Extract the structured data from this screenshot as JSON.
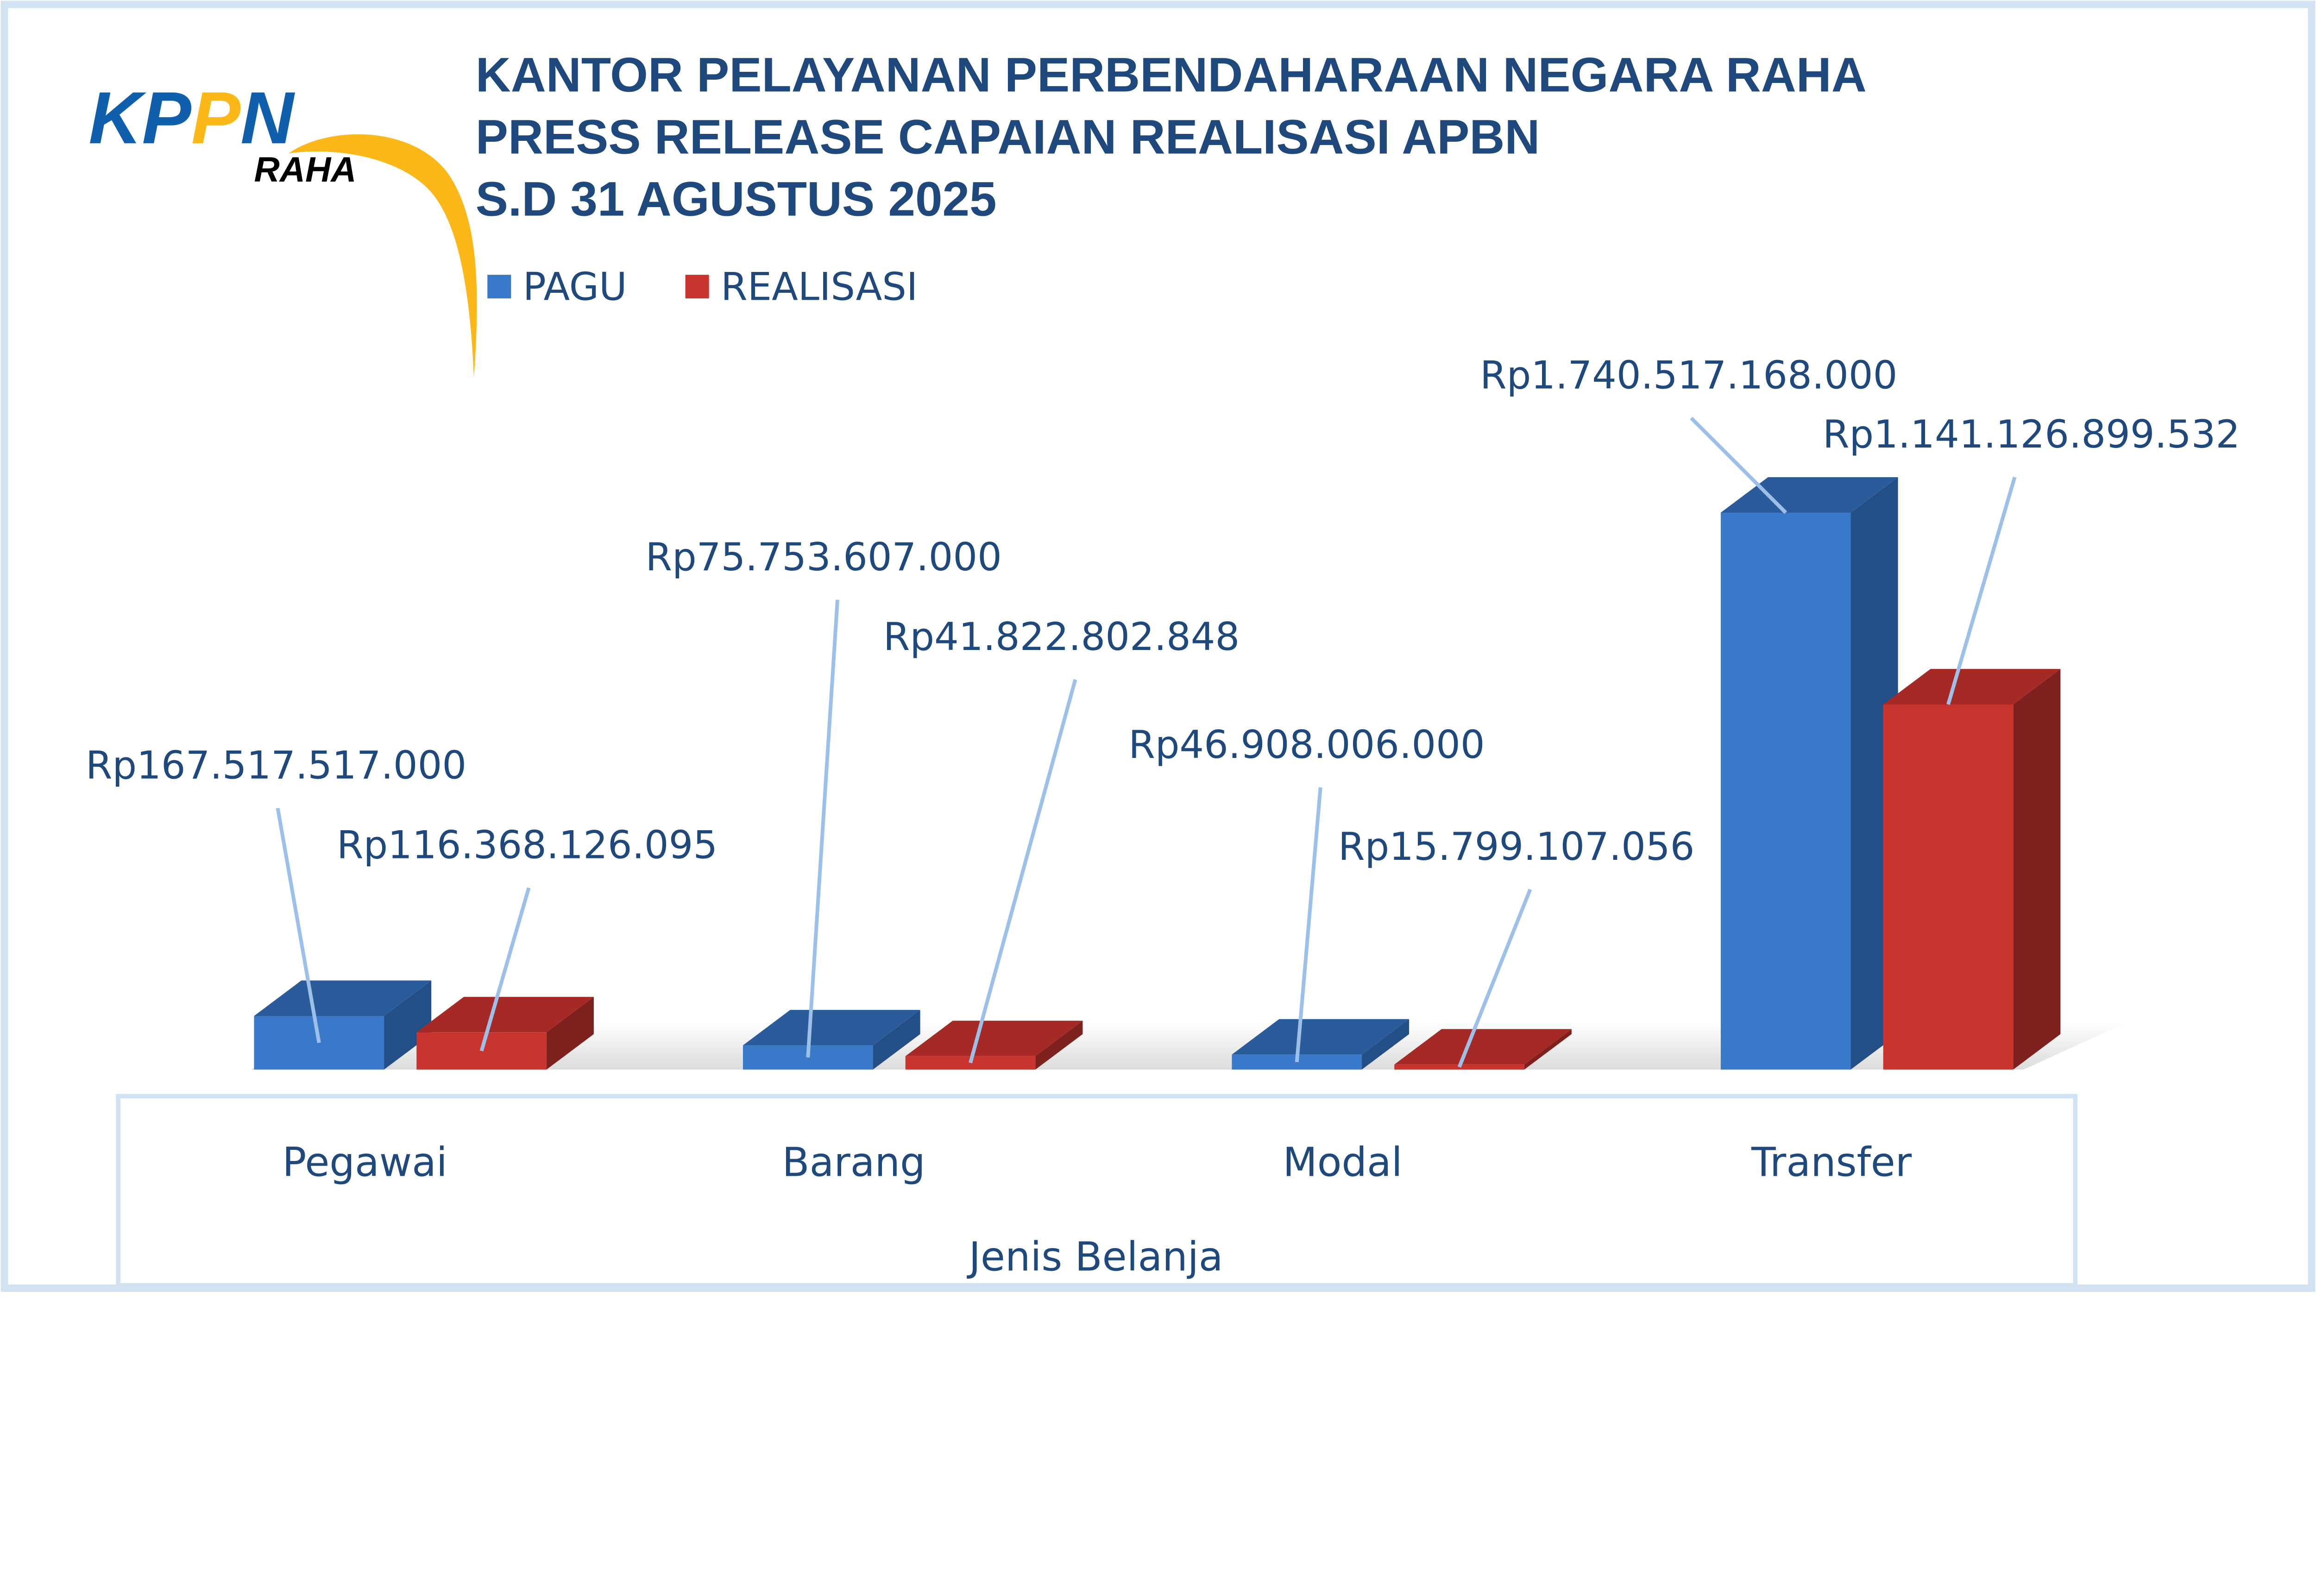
{
  "logo": {
    "text": "KPPN",
    "sub": "RAHA"
  },
  "chart_data": {
    "type": "bar",
    "title": [
      "KANTOR PELAYANAN PERBENDAHARAAN NEGARA RAHA",
      "PRESS RELEASE CAPAIAN REALISASI APBN",
      "S.D 31 AGUSTUS 2025"
    ],
    "xlabel": "Jenis Belanja",
    "ylabel": "",
    "categories": [
      "Pegawai",
      "Barang",
      "Modal",
      "Transfer"
    ],
    "legend_position": "top-left",
    "grid": false,
    "series": [
      {
        "name": "PAGU",
        "color": "#3a78c9",
        "values": [
          167517517000,
          75753607000,
          46908006000,
          1740517168000
        ],
        "labels": [
          "Rp167.517.517.000",
          "Rp75.753.607.000",
          "Rp46.908.006.000",
          "Rp1.740.517.168.000"
        ]
      },
      {
        "name": "REALISASI",
        "color": "#c9342f",
        "values": [
          116368126095,
          41822802848,
          15799107056,
          1141126899532
        ],
        "labels": [
          "Rp116.368.126.095",
          "Rp41.822.802.848",
          "Rp15.799.107.056",
          "Rp1.141.126.899.532"
        ]
      }
    ]
  }
}
